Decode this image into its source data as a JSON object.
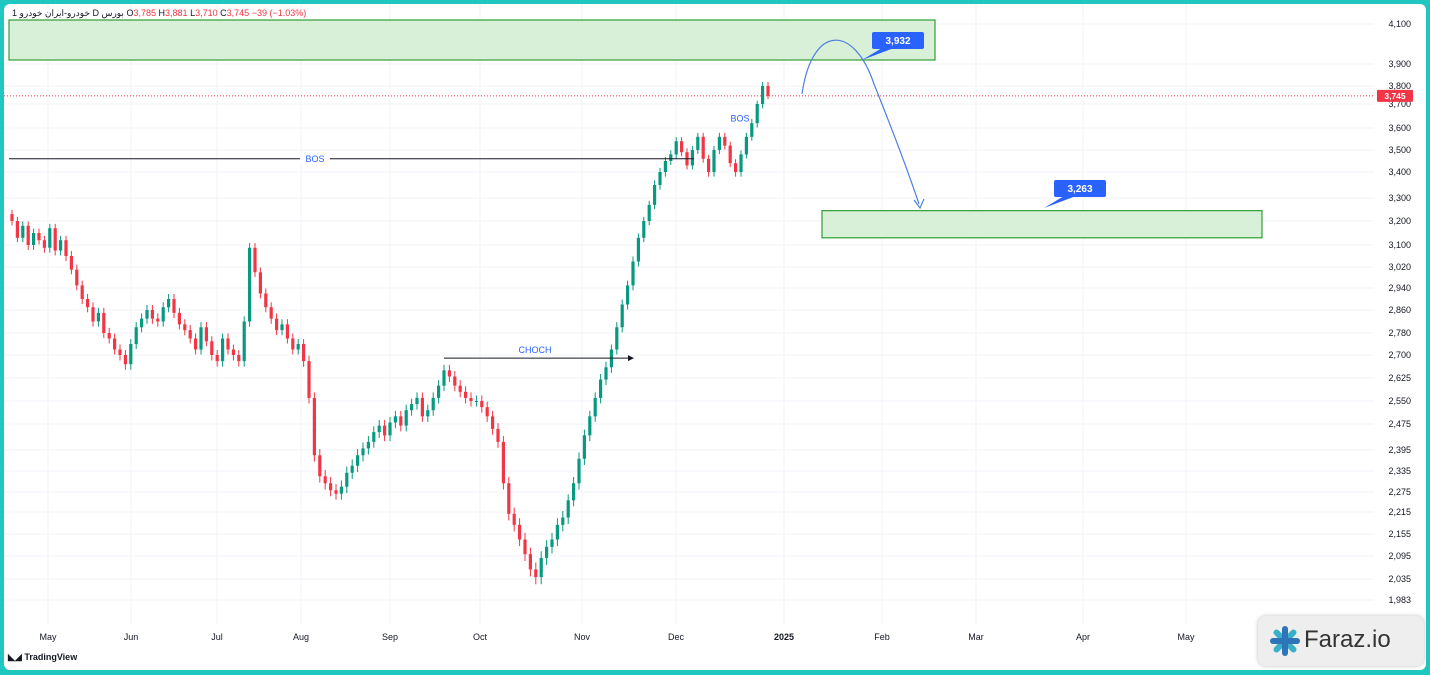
{
  "header": {
    "prefix": "1 ",
    "symbol": "خودرو-ایران خودرو",
    "interval": "D",
    "exchange": "بورس",
    "open_label": "O",
    "open": "3,785",
    "high_label": "H",
    "high": "3,881",
    "low_label": "L",
    "low": "3,710",
    "close_label": "C",
    "close": "3,745",
    "change": "−39 (−1.03%)"
  },
  "branding": {
    "tradingview": "TradingView",
    "watermark": "Faraz.io"
  },
  "colors": {
    "up": "#089981",
    "down": "#f23645",
    "zone_fill": "#d8f0d8",
    "zone_stroke": "#2e9e34",
    "label_blue": "#2962ff",
    "annotation_text": "#2962ff",
    "price_label": "#f23645"
  },
  "chart_data": {
    "type": "candlestick",
    "x_axis_labels": [
      "May",
      "Jun",
      "Jul",
      "Aug",
      "Sep",
      "Oct",
      "Nov",
      "Dec",
      "2025",
      "Feb",
      "Mar",
      "Apr",
      "May"
    ],
    "y_axis_labels": [
      "4,100",
      "3,900",
      "3,800",
      "3,700",
      "3,600",
      "3,500",
      "3,400",
      "3,300",
      "3,200",
      "3,100",
      "3,020",
      "2,940",
      "2,860",
      "2,780",
      "2,700",
      "2,625",
      "2,550",
      "2,475",
      "2,395",
      "2,335",
      "2,275",
      "2,215",
      "2,155",
      "2,095",
      "2,035",
      "1,983"
    ],
    "y_axis_values": [
      4100,
      3900,
      3800,
      3700,
      3600,
      3500,
      3400,
      3300,
      3200,
      3100,
      3020,
      2940,
      2860,
      2780,
      2700,
      2625,
      2550,
      2475,
      2395,
      2335,
      2275,
      2215,
      2155,
      2095,
      2035,
      1983
    ],
    "last_price": 3745,
    "last_price_label": "3,745",
    "candle_timeline": {
      "start_month": "May",
      "end_month": "Dec",
      "end_day_fraction": 0.92
    },
    "candles_close": [
      3200,
      3130,
      3180,
      3100,
      3150,
      3120,
      3090,
      3170,
      3080,
      3120,
      3060,
      3010,
      2950,
      2900,
      2870,
      2820,
      2850,
      2780,
      2760,
      2720,
      2700,
      2670,
      2740,
      2800,
      2830,
      2860,
      2830,
      2820,
      2870,
      2900,
      2850,
      2810,
      2790,
      2760,
      2720,
      2800,
      2750,
      2700,
      2680,
      2760,
      2720,
      2700,
      2680,
      2820,
      3090,
      3000,
      2920,
      2870,
      2830,
      2790,
      2810,
      2760,
      2720,
      2740,
      2680,
      2560,
      2380,
      2320,
      2300,
      2280,
      2270,
      2290,
      2330,
      2350,
      2380,
      2400,
      2420,
      2450,
      2470,
      2440,
      2480,
      2500,
      2470,
      2520,
      2540,
      2560,
      2500,
      2520,
      2560,
      2600,
      2650,
      2630,
      2600,
      2580,
      2560,
      2550,
      2550,
      2530,
      2500,
      2460,
      2420,
      2300,
      2210,
      2180,
      2140,
      2100,
      2060,
      2040,
      2090,
      2120,
      2140,
      2180,
      2200,
      2250,
      2300,
      2370,
      2440,
      2500,
      2560,
      2620,
      2660,
      2720,
      2800,
      2880,
      2950,
      3040,
      3130,
      3200,
      3270,
      3350,
      3400,
      3450,
      3480,
      3540,
      3490,
      3430,
      3500,
      3560,
      3460,
      3400,
      3500,
      3560,
      3520,
      3440,
      3400,
      3480,
      3560,
      3620,
      3700,
      3800,
      3745
    ],
    "zones": [
      {
        "name": "supply-zone",
        "top": 4120,
        "bottom": 3920
      },
      {
        "name": "target-zone",
        "top": 3245,
        "bottom": 3130
      }
    ],
    "annotations": [
      {
        "text": "BOS",
        "kind": "horizontal-line",
        "price": 3460
      },
      {
        "text": "CHOCH",
        "kind": "arrow-line",
        "price": 2690
      },
      {
        "text": "BOS",
        "kind": "label",
        "price": 3640
      }
    ],
    "price_labels": [
      {
        "text": "3,932",
        "value": 3932
      },
      {
        "text": "3,263",
        "value": 3263
      }
    ],
    "grid": true
  }
}
